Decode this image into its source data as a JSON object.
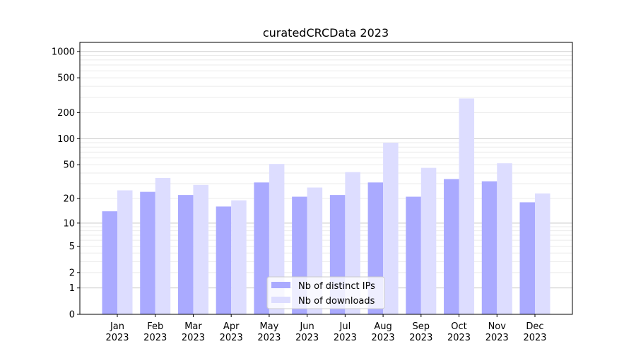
{
  "chart_data": {
    "type": "bar",
    "title": "curatedCRCData 2023",
    "xlabel": "",
    "ylabel": "",
    "yscale": "log(1+y)",
    "ylim": [
      0,
      1270
    ],
    "yticks": [
      0,
      1,
      2,
      5,
      10,
      20,
      50,
      100,
      200,
      500,
      1000
    ],
    "grid": true,
    "legend_position": "bottom-center",
    "categories": [
      "Jan\n2023",
      "Feb\n2023",
      "Mar\n2023",
      "Apr\n2023",
      "May\n2023",
      "Jun\n2023",
      "Jul\n2023",
      "Aug\n2023",
      "Sep\n2023",
      "Oct\n2023",
      "Nov\n2023",
      "Dec\n2023"
    ],
    "series": [
      {
        "name": "Nb of distinct IPs",
        "color": "#aaaaff",
        "values": [
          14,
          24,
          22,
          16,
          31,
          21,
          22,
          31,
          21,
          34,
          32,
          18
        ]
      },
      {
        "name": "Nb of downloads",
        "color": "#ddddff",
        "values": [
          25,
          35,
          29,
          19,
          51,
          27,
          41,
          90,
          46,
          290,
          52,
          23
        ]
      }
    ]
  }
}
